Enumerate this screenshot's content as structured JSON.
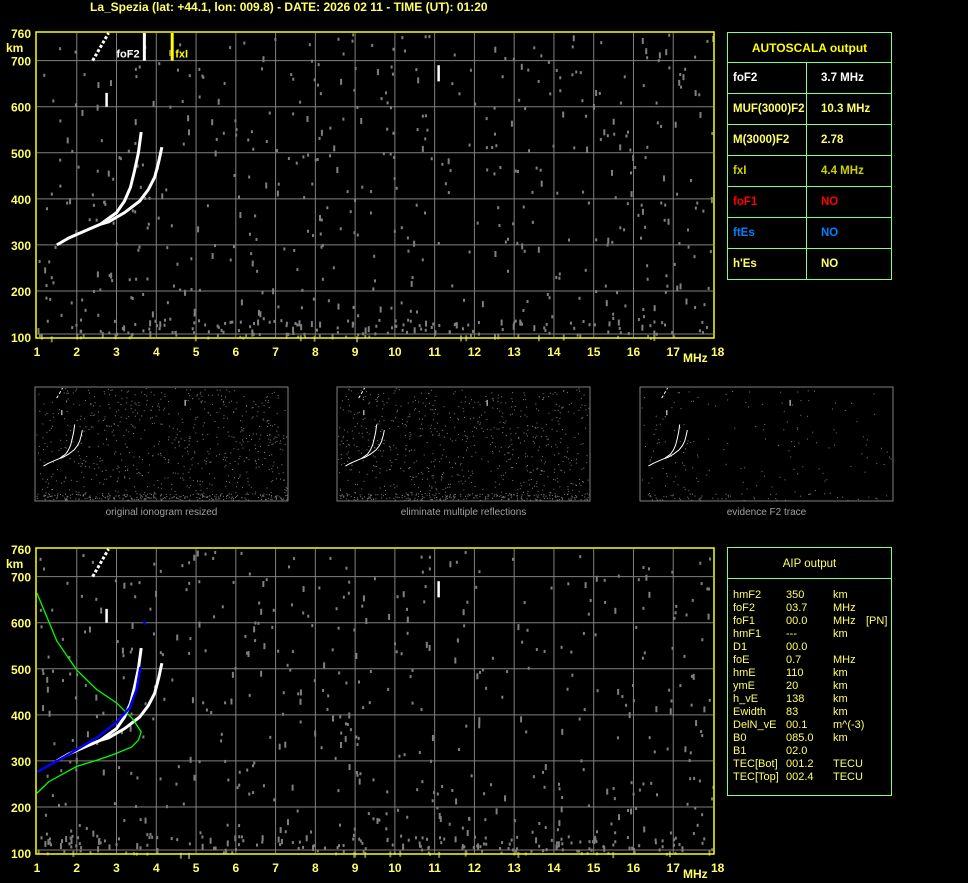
{
  "header": {
    "title": "La_Spezia (lat: +44.1, lon: 009.8) - DATE: 2026 02 11 - TIME (UT): 01:20"
  },
  "colors": {
    "axis": "#ffff00",
    "tick_label": "#ffff66",
    "grid": "#808080",
    "noise": "#808080",
    "trace": "#ffffff",
    "fit": "#0000ff",
    "profile": "#00ff00",
    "table_border": "#80ff80"
  },
  "autoscala": {
    "title": "AUTOSCALA output",
    "rows": [
      {
        "label": "foF2",
        "value": "3.7 MHz",
        "color": "#ffffff"
      },
      {
        "label": "MUF(3000)F2",
        "value": "10.3 MHz",
        "color": "#ffff66"
      },
      {
        "label": "M(3000)F2",
        "value": "2.78",
        "color": "#ffff66"
      },
      {
        "label": "fxI",
        "value": "4.4 MHz",
        "color": "#d0d000"
      },
      {
        "label": "foF1",
        "value": "NO",
        "color": "#ff0000"
      },
      {
        "label": "ftEs",
        "value": "NO",
        "color": "#0080ff"
      },
      {
        "label": "h'Es",
        "value": "NO",
        "color": "#ffff66"
      }
    ]
  },
  "aip": {
    "title": "AIP output",
    "rows": [
      {
        "label": "hmF2",
        "value": "350",
        "unit": "km",
        "extra": ""
      },
      {
        "label": "foF2",
        "value": "03.7",
        "unit": "MHz",
        "extra": ""
      },
      {
        "label": "foF1",
        "value": "00.0",
        "unit": "MHz",
        "extra": "[PN]"
      },
      {
        "label": "hmF1",
        "value": "---",
        "unit": "km",
        "extra": ""
      },
      {
        "label": "D1",
        "value": "00.0",
        "unit": "",
        "extra": ""
      },
      {
        "label": "foE",
        "value": "0.7",
        "unit": "MHz",
        "extra": ""
      },
      {
        "label": "hmE",
        "value": "110",
        "unit": "km",
        "extra": ""
      },
      {
        "label": "ymE",
        "value": "20",
        "unit": "km",
        "extra": ""
      },
      {
        "label": "h_vE",
        "value": "138",
        "unit": "km",
        "extra": ""
      },
      {
        "label": "Ewidth",
        "value": "83",
        "unit": "km",
        "extra": ""
      },
      {
        "label": "DelN_vE",
        "value": "00.1",
        "unit": "m^(-3)",
        "extra": ""
      },
      {
        "label": "B0",
        "value": "085.0",
        "unit": "km",
        "extra": ""
      },
      {
        "label": "B1",
        "value": "02.0",
        "unit": "",
        "extra": ""
      },
      {
        "label": "TEC[Bot]",
        "value": "001.2",
        "unit": "TECU",
        "extra": ""
      },
      {
        "label": "TEC[Top]",
        "value": "002.4",
        "unit": "TECU",
        "extra": ""
      }
    ]
  },
  "thumbnails": [
    {
      "caption": "original ionogram resized",
      "noise": "full"
    },
    {
      "caption": "eliminate multiple reflections",
      "noise": "full"
    },
    {
      "caption": "evidence F2 trace",
      "noise": "sparse"
    }
  ],
  "chart_data": [
    {
      "type": "scatter",
      "panel": "autoscala-ionogram",
      "xlabel": "MHz",
      "ylabel": "km",
      "xlim": [
        1,
        18
      ],
      "ylim": [
        100,
        760
      ],
      "xticks": [
        "1",
        "2",
        "3",
        "4",
        "5",
        "6",
        "7",
        "8",
        "9",
        "10",
        "11",
        "12",
        "13",
        "14",
        "15",
        "16",
        "17",
        "18"
      ],
      "yticks": [
        "100",
        "200",
        "300",
        "400",
        "500",
        "600",
        "700",
        "760"
      ],
      "grid": true,
      "traces": [
        {
          "kind": "o-trace",
          "points": [
            [
              1.5,
              300
            ],
            [
              1.8,
              315
            ],
            [
              2.2,
              330
            ],
            [
              2.6,
              345
            ],
            [
              3.0,
              370
            ],
            [
              3.2,
              395
            ],
            [
              3.35,
              425
            ],
            [
              3.45,
              460
            ],
            [
              3.55,
              500
            ],
            [
              3.62,
              545
            ]
          ]
        },
        {
          "kind": "x-trace",
          "points": [
            [
              2.6,
              345
            ],
            [
              2.8,
              350
            ],
            [
              3.2,
              370
            ],
            [
              3.58,
              395
            ],
            [
              3.8,
              420
            ],
            [
              3.96,
              447
            ],
            [
              4.06,
              480
            ],
            [
              4.14,
              512
            ]
          ]
        },
        {
          "kind": "second-hop",
          "points": [
            [
              2.4,
              700
            ],
            [
              2.6,
              730
            ],
            [
              2.8,
              760
            ]
          ]
        },
        {
          "kind": "segment",
          "points": [
            [
              2.75,
              600
            ],
            [
              2.75,
              630
            ]
          ]
        },
        {
          "kind": "segment",
          "points": [
            [
              11.1,
              655
            ],
            [
              11.1,
              690
            ]
          ]
        }
      ],
      "markers": [
        {
          "label": "foF2",
          "freq": 3.7,
          "color": "#ffffff"
        },
        {
          "label": "fxI",
          "freq": 4.4,
          "color": "#ffff00"
        }
      ]
    },
    {
      "type": "scatter",
      "panel": "aip-ionogram",
      "xlabel": "MHz",
      "ylabel": "km",
      "xlim": [
        1,
        18
      ],
      "ylim": [
        100,
        760
      ],
      "xticks": [
        "1",
        "2",
        "3",
        "4",
        "5",
        "6",
        "7",
        "8",
        "9",
        "10",
        "11",
        "12",
        "13",
        "14",
        "15",
        "16",
        "17",
        "18"
      ],
      "yticks": [
        "100",
        "200",
        "300",
        "400",
        "500",
        "600",
        "700",
        "760"
      ],
      "grid": true,
      "traces": [
        {
          "kind": "o-trace",
          "points": [
            [
              1.5,
              300
            ],
            [
              1.8,
              315
            ],
            [
              2.2,
              330
            ],
            [
              2.6,
              345
            ],
            [
              3.0,
              370
            ],
            [
              3.2,
              395
            ],
            [
              3.35,
              425
            ],
            [
              3.45,
              460
            ],
            [
              3.55,
              500
            ],
            [
              3.62,
              545
            ]
          ]
        },
        {
          "kind": "x-trace",
          "points": [
            [
              2.6,
              345
            ],
            [
              2.8,
              350
            ],
            [
              3.2,
              370
            ],
            [
              3.58,
              395
            ],
            [
              3.8,
              420
            ],
            [
              3.96,
              447
            ],
            [
              4.06,
              480
            ],
            [
              4.14,
              512
            ]
          ]
        },
        {
          "kind": "second-hop",
          "points": [
            [
              2.4,
              700
            ],
            [
              2.6,
              730
            ],
            [
              2.8,
              760
            ]
          ]
        },
        {
          "kind": "segment",
          "points": [
            [
              2.75,
              600
            ],
            [
              2.75,
              630
            ]
          ]
        },
        {
          "kind": "segment",
          "points": [
            [
              11.1,
              655
            ],
            [
              11.1,
              690
            ]
          ]
        }
      ],
      "fit": [
        [
          1.0,
          276
        ],
        [
          1.68,
          308
        ],
        [
          2.5,
          350
        ],
        [
          3.0,
          384
        ],
        [
          3.33,
          415
        ],
        [
          3.5,
          454
        ],
        [
          3.6,
          504
        ],
        [
          3.7,
          599
        ]
      ],
      "profile": [
        [
          1.0,
          664
        ],
        [
          1.5,
          560
        ],
        [
          2.0,
          497
        ],
        [
          2.5,
          455
        ],
        [
          3.0,
          426
        ],
        [
          3.4,
          392
        ],
        [
          3.62,
          363
        ],
        [
          3.55,
          345
        ],
        [
          3.38,
          330
        ],
        [
          2.9,
          313
        ],
        [
          2.52,
          302
        ],
        [
          2.0,
          288
        ],
        [
          1.68,
          273
        ],
        [
          1.3,
          255
        ],
        [
          1.0,
          230
        ]
      ]
    }
  ]
}
